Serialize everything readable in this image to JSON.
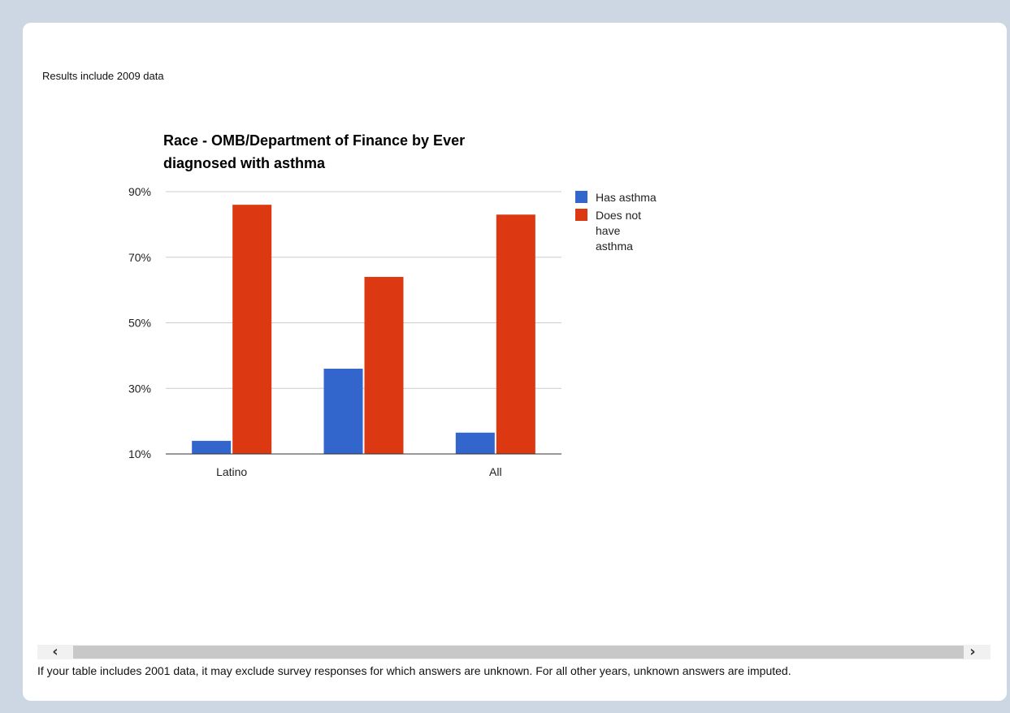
{
  "results_note": "Results include 2009 data",
  "footer_note": "If your table includes 2001 data, it may exclude survey responses for which answers are unknown. For all other years, unknown answers are imputed.",
  "scrollbar": {
    "left_icon": "chevron-left-icon",
    "right_icon": "chevron-right-icon"
  },
  "colors": {
    "has_asthma": "#3366cc",
    "no_asthma": "#dc3912",
    "background": "#cdd7e3"
  },
  "chart_data": {
    "type": "bar",
    "title": "Race - OMB/Department of Finance by Ever diagnosed with asthma",
    "title_lines": [
      "Race - OMB/Department of Finance by Ever",
      "diagnosed with asthma"
    ],
    "categories": [
      "Latino",
      "",
      "All"
    ],
    "series": [
      {
        "name": "Has asthma",
        "values": [
          14,
          36,
          16.5
        ]
      },
      {
        "name": "Does not have asthma",
        "legend_lines": [
          "Does not",
          "have",
          "asthma"
        ],
        "values": [
          86,
          64,
          83
        ]
      }
    ],
    "ylim": [
      10,
      90
    ],
    "yticks": [
      10,
      30,
      50,
      70,
      90
    ],
    "ytick_labels": [
      "10%",
      "30%",
      "50%",
      "70%",
      "90%"
    ],
    "xlabel": "",
    "ylabel": "",
    "grid": true,
    "legend_position": "right"
  }
}
